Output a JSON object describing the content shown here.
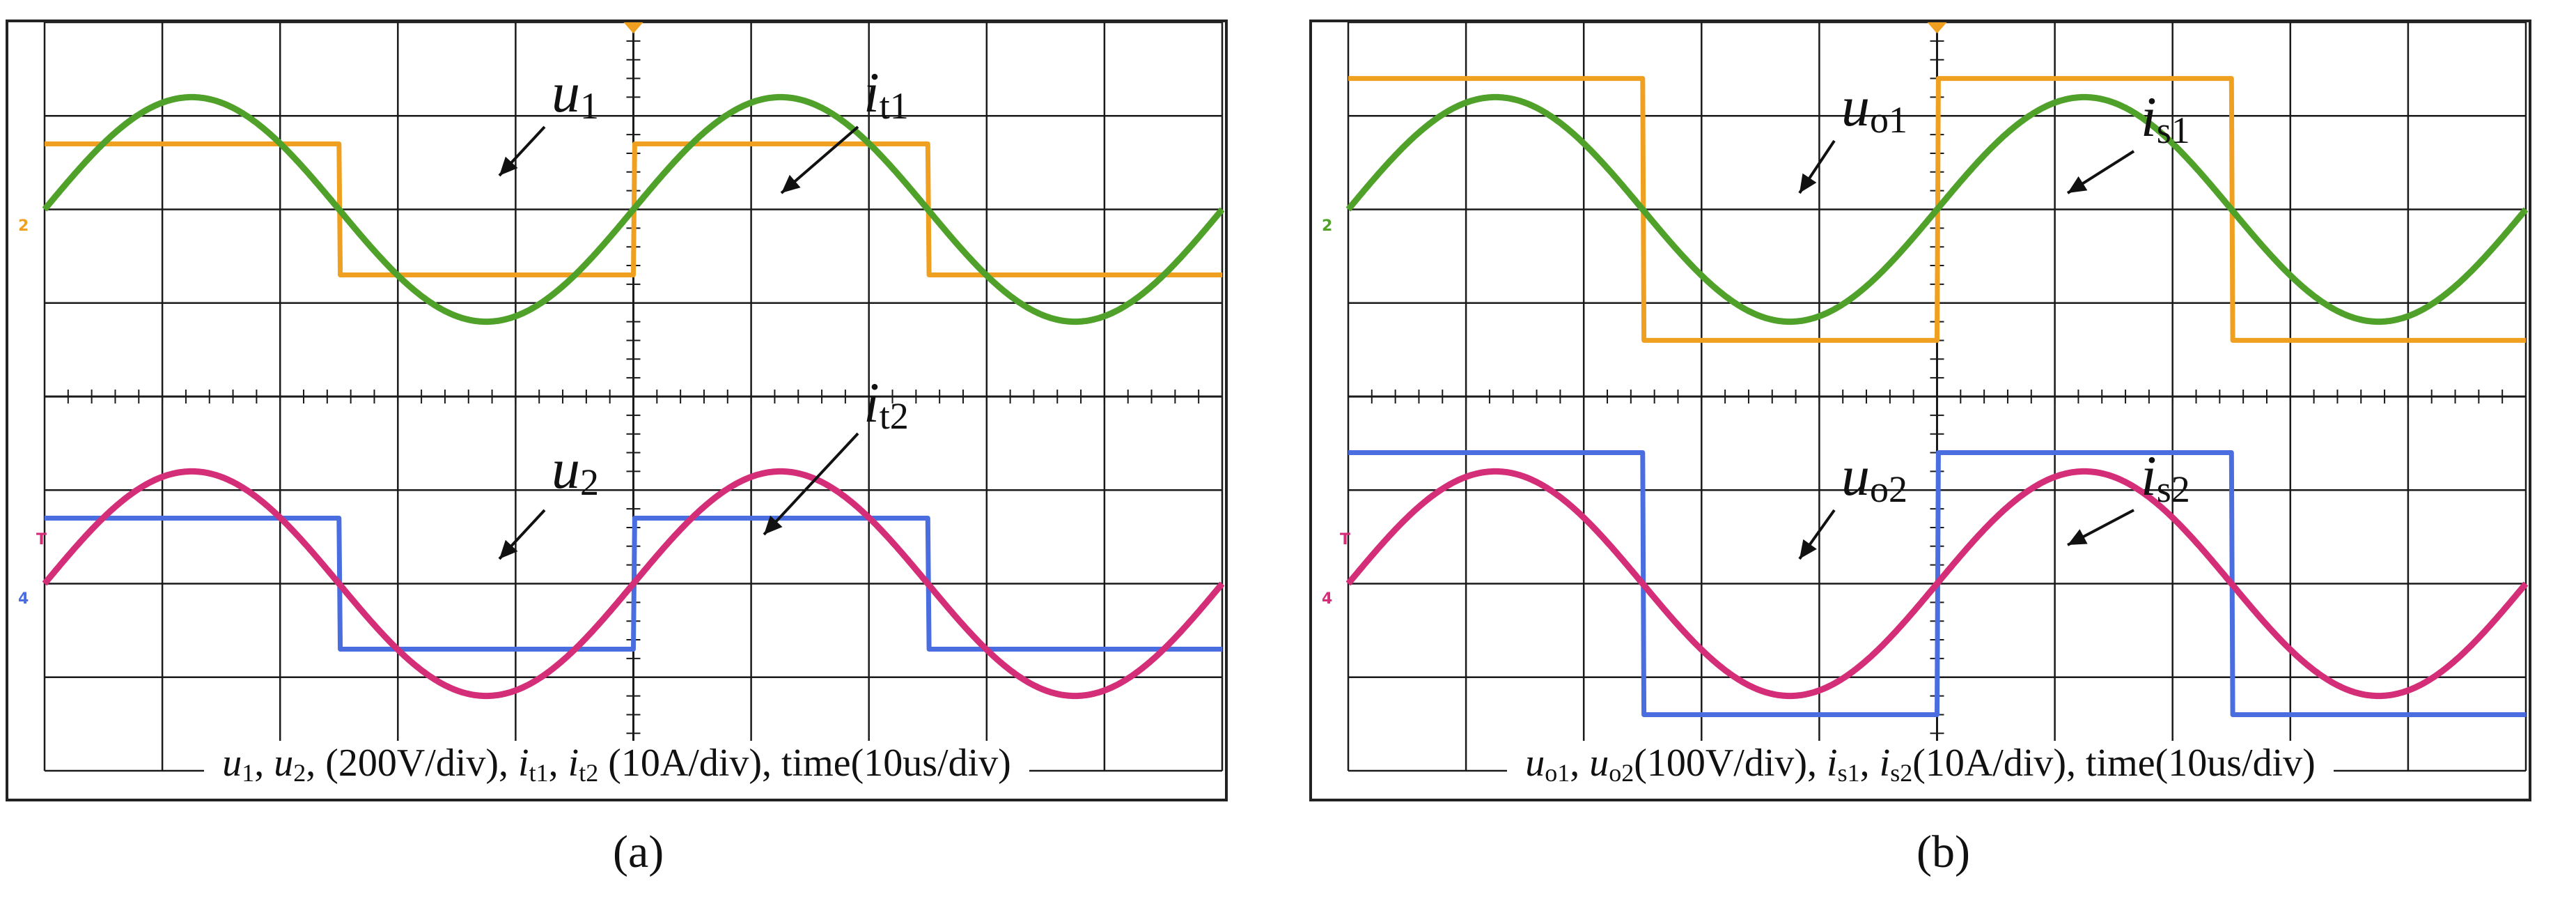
{
  "figure": {
    "panels": [
      {
        "id": "a",
        "panel_label": "(a)",
        "caption": {
          "v1": "u",
          "v1_sub": "1",
          "sep1": ", ",
          "v2": "u",
          "v2_sub": "2",
          "sep2": ", (200V/div), ",
          "v3": "i",
          "v3_sub": "t1",
          "sep3": ", ",
          "v4": "i",
          "v4_sub": "t2",
          "tail": " (10A/div), time(10us/div)"
        },
        "annotations": [
          {
            "var": "u",
            "sub": "1"
          },
          {
            "var": "i",
            "sub": "t1"
          },
          {
            "var": "u",
            "sub": "2"
          },
          {
            "var": "i",
            "sub": "t2"
          }
        ],
        "markers": [
          "2",
          "T",
          "4"
        ]
      },
      {
        "id": "b",
        "panel_label": "(b)",
        "caption": {
          "v1": "u",
          "v1_sub": "o1",
          "sep1": ", ",
          "v2": "u",
          "v2_sub": "o2",
          "sep2": "(100V/div), ",
          "v3": "i",
          "v3_sub": "s1",
          "sep3": ", ",
          "v4": "i",
          "v4_sub": "s2",
          "tail": "(10A/div), time(10us/div)"
        },
        "annotations": [
          {
            "var": "u",
            "sub": "o1"
          },
          {
            "var": "i",
            "sub": "s1"
          },
          {
            "var": "u",
            "sub": "o2"
          },
          {
            "var": "i",
            "sub": "s2"
          }
        ],
        "markers": [
          "2",
          "T",
          "4"
        ]
      }
    ]
  },
  "chart_data": [
    {
      "type": "line",
      "title": "(a)",
      "x_unit": "10us/div",
      "x_divisions": 10,
      "y_divisions": 8,
      "grid": true,
      "channel_offsets_div": [
        2,
        -2
      ],
      "series": [
        {
          "name": "u1",
          "shape": "square",
          "color": "#f0a020",
          "channel": "upper",
          "amplitude_div": 0.7,
          "cycles": 2,
          "phase_div": 0.0,
          "offset_div": 2
        },
        {
          "name": "it1",
          "shape": "sine",
          "color": "#4fa12a",
          "channel": "upper",
          "amplitude_div": 1.2,
          "cycles": 2,
          "phase_div": 0.0,
          "offset_div": 2
        },
        {
          "name": "u2",
          "shape": "square",
          "color": "#4a6ee0",
          "channel": "lower",
          "amplitude_div": 0.7,
          "cycles": 2,
          "phase_div": 0.0,
          "offset_div": -2
        },
        {
          "name": "it2",
          "shape": "sine",
          "color": "#d42e78",
          "channel": "lower",
          "amplitude_div": 1.2,
          "cycles": 2,
          "phase_div": 0.0,
          "offset_div": -2
        }
      ]
    },
    {
      "type": "line",
      "title": "(b)",
      "x_unit": "10us/div",
      "x_divisions": 10,
      "y_divisions": 8,
      "grid": true,
      "channel_offsets_div": [
        2,
        -2
      ],
      "series": [
        {
          "name": "uo1",
          "shape": "square",
          "color": "#f0a020",
          "channel": "upper",
          "amplitude_div": 1.4,
          "cycles": 2,
          "phase_div": 0.0,
          "offset_div": 2
        },
        {
          "name": "is1",
          "shape": "sine",
          "color": "#4fa12a",
          "channel": "upper",
          "amplitude_div": 1.2,
          "cycles": 2,
          "phase_div": 0.0,
          "offset_div": 2
        },
        {
          "name": "uo2",
          "shape": "square",
          "color": "#4a6ee0",
          "channel": "lower",
          "amplitude_div": 1.4,
          "cycles": 2,
          "phase_div": 0.0,
          "offset_div": -2
        },
        {
          "name": "is2",
          "shape": "sine",
          "color": "#d42e78",
          "channel": "lower",
          "amplitude_div": 1.2,
          "cycles": 2,
          "phase_div": 0.0,
          "offset_div": -2
        }
      ]
    }
  ]
}
